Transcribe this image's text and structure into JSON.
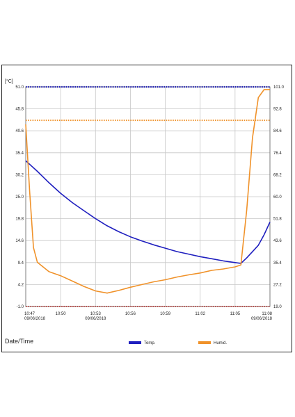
{
  "chart_data": {
    "type": "line",
    "y_unit": "[°C]",
    "xlabel": "Date/Time",
    "x_ticks": [
      {
        "time": "10:47",
        "date": "09/06/2018"
      },
      {
        "time": "10:50",
        "date": ""
      },
      {
        "time": "10:53",
        "date": "09/06/2018"
      },
      {
        "time": "10:56",
        "date": ""
      },
      {
        "time": "10:59",
        "date": ""
      },
      {
        "time": "11:02",
        "date": ""
      },
      {
        "time": "11:05",
        "date": ""
      },
      {
        "time": "11:08",
        "date": "09/06/2018"
      }
    ],
    "xlim": [
      "10:47",
      "11:08"
    ],
    "y_left": {
      "ylim": [
        -1.0,
        51.0
      ],
      "ticks": [
        "-1.0",
        "4.2",
        "9.4",
        "14.6",
        "19.8",
        "25.0",
        "30.2",
        "35.4",
        "40.6",
        "45.8",
        "51.0"
      ]
    },
    "y_right": {
      "ylim": [
        19.0,
        101.0
      ],
      "ticks": [
        "19.0",
        "27.2",
        "35.4",
        "43.6",
        "51.8",
        "60.0",
        "68.2",
        "76.4",
        "84.6",
        "92.8",
        "101.0"
      ]
    },
    "grid": true,
    "legend_position": "bottom",
    "series": [
      {
        "name": "Temp.",
        "axis": "left",
        "color": "#1f1fbf",
        "x": [
          "10:47",
          "10:48",
          "10:49",
          "10:50",
          "10:51",
          "10:52",
          "10:53",
          "10:54",
          "10:55",
          "10:56",
          "10:57",
          "10:58",
          "10:59",
          "11:00",
          "11:01",
          "11:02",
          "11:03",
          "11:04",
          "11:05",
          "11:05:30",
          "11:06",
          "11:07",
          "11:07:30",
          "11:08"
        ],
        "y": [
          33.5,
          31.0,
          28.3,
          25.8,
          23.6,
          21.7,
          19.8,
          18.1,
          16.7,
          15.5,
          14.5,
          13.6,
          12.8,
          12.0,
          11.4,
          10.8,
          10.3,
          9.8,
          9.4,
          9.2,
          10.5,
          13.5,
          16.0,
          19.0
        ]
      },
      {
        "name": "Humid.",
        "axis": "right",
        "color": "#f0922a",
        "x": [
          "10:47",
          "10:47:20",
          "10:47:40",
          "10:48",
          "10:49",
          "10:50",
          "10:51",
          "10:52",
          "10:53",
          "10:54",
          "10:55",
          "10:56",
          "10:57",
          "10:58",
          "10:59",
          "11:00",
          "11:01",
          "11:02",
          "11:03",
          "11:04",
          "11:05",
          "11:05:30",
          "11:06",
          "11:06:30",
          "11:07",
          "11:07:30",
          "11:08"
        ],
        "y": [
          87.0,
          62.0,
          41.0,
          35.5,
          32.0,
          30.5,
          28.5,
          26.5,
          24.8,
          24.0,
          25.0,
          26.2,
          27.2,
          28.2,
          29.0,
          30.0,
          30.8,
          31.5,
          32.5,
          33.0,
          33.8,
          34.5,
          55.0,
          82.0,
          97.0,
          100.0,
          100.0
        ]
      }
    ],
    "reference_lines": [
      {
        "axis": "left",
        "value": 51.0,
        "color": "#1f1fbf",
        "style": "dotted"
      },
      {
        "axis": "right",
        "value": 88.5,
        "color": "#f0922a",
        "style": "dotted"
      },
      {
        "axis": "left",
        "value": -1.0,
        "color": "#c0504d",
        "style": "dotted"
      }
    ]
  }
}
